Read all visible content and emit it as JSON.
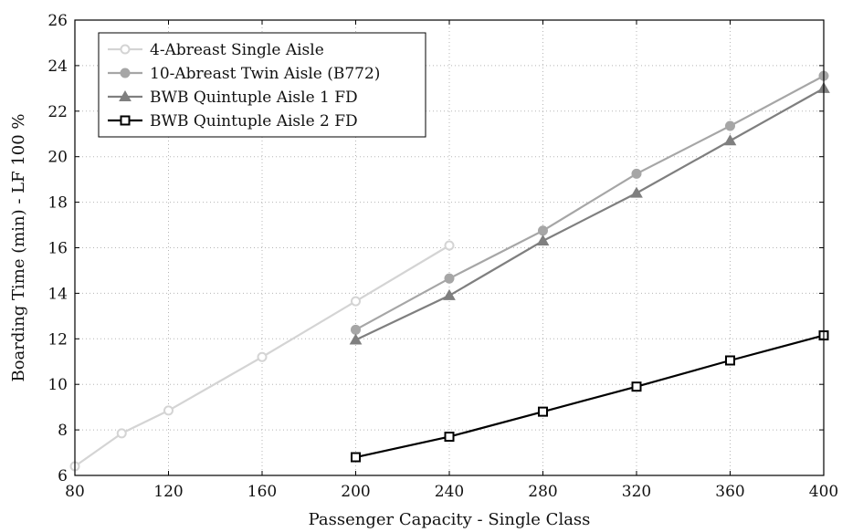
{
  "chart_data": {
    "type": "line",
    "title": "",
    "xlabel": "Passenger Capacity - Single Class",
    "ylabel": "Boarding Time (min) - LF 100 %",
    "xlim": [
      80,
      400
    ],
    "ylim": [
      6,
      26
    ],
    "xticks": [
      80,
      120,
      160,
      200,
      240,
      280,
      320,
      360,
      400
    ],
    "yticks": [
      6,
      8,
      10,
      12,
      14,
      16,
      18,
      20,
      22,
      24,
      26
    ],
    "grid": true,
    "legend_position": "top-left",
    "series": [
      {
        "name": "4-Abreast Single Aisle",
        "color": "#d4d4d4",
        "marker": "open-circle",
        "x": [
          80,
          100,
          120,
          160,
          200,
          240
        ],
        "y": [
          6.4,
          7.85,
          8.85,
          11.2,
          13.65,
          16.1
        ]
      },
      {
        "name": "10-Abreast Twin Aisle (B772)",
        "color": "#a6a6a6",
        "marker": "filled-circle",
        "x": [
          200,
          240,
          280,
          320,
          360,
          400
        ],
        "y": [
          12.4,
          14.65,
          16.75,
          19.25,
          21.35,
          23.55
        ]
      },
      {
        "name": "BWB Quintuple Aisle 1 FD",
        "color": "#7f7f7f",
        "marker": "filled-triangle",
        "x": [
          200,
          240,
          280,
          320,
          360,
          400
        ],
        "y": [
          11.95,
          13.9,
          16.3,
          18.4,
          20.7,
          23.0
        ]
      },
      {
        "name": "BWB Quintuple Aisle 2 FD",
        "color": "#000000",
        "marker": "open-square",
        "x": [
          200,
          240,
          280,
          320,
          360,
          400
        ],
        "y": [
          6.8,
          7.7,
          8.8,
          9.9,
          11.05,
          12.15
        ]
      }
    ]
  }
}
